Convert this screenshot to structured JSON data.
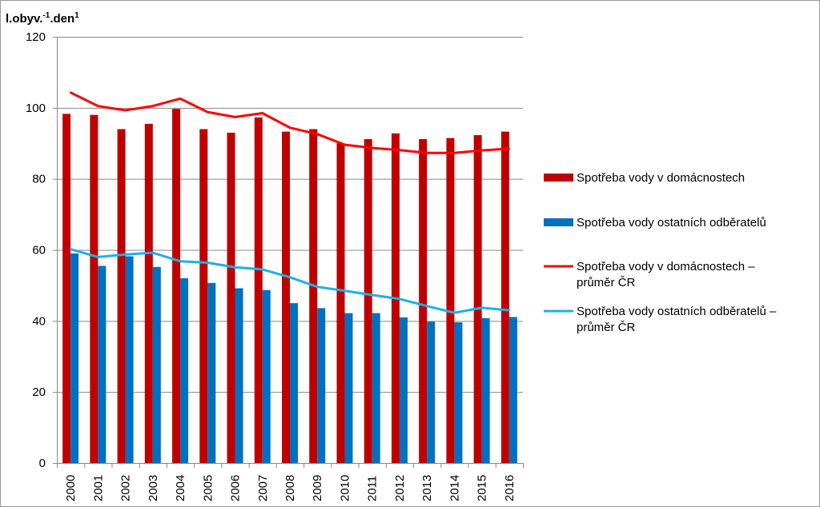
{
  "chart_data": {
    "type": "bar",
    "unit_label": "l.obyv.",
    "unit_sup1": "-1",
    "unit_mid": ".den",
    "unit_sup2": "1",
    "categories": [
      "2000",
      "2001",
      "2002",
      "2003",
      "2004",
      "2005",
      "2006",
      "2007",
      "2008",
      "2009",
      "2010",
      "2011",
      "2012",
      "2013",
      "2014",
      "2015",
      "2016"
    ],
    "ylim": [
      0,
      120
    ],
    "yticks": [
      0,
      20,
      40,
      60,
      80,
      100,
      120
    ],
    "grid": true,
    "legend_position": "right",
    "series": [
      {
        "name": "Spotřeba vody v domácnostech",
        "kind": "bar",
        "color": "#c00000",
        "values": [
          98.3,
          98.0,
          94.0,
          95.5,
          99.7,
          94.0,
          93.0,
          97.3,
          93.3,
          94.0,
          90.0,
          91.2,
          92.8,
          91.2,
          91.5,
          92.3,
          93.3
        ]
      },
      {
        "name": "Spotřeba vody ostatních odběratelů",
        "kind": "bar",
        "color": "#0070c0",
        "values": [
          59.0,
          55.5,
          58.2,
          55.2,
          52.0,
          50.7,
          49.2,
          48.7,
          45.0,
          43.6,
          42.2,
          42.2,
          41.0,
          39.8,
          39.6,
          40.8,
          41.1
        ]
      },
      {
        "name": "Spotřeba vody v domácnostech – průměr ČR",
        "legend_lines": [
          "Spotřeba vody v domácnostech –",
          "průměr ČR"
        ],
        "kind": "line",
        "color": "#ff0000",
        "values": [
          104.3,
          100.5,
          99.3,
          100.5,
          102.6,
          98.8,
          97.4,
          98.5,
          94.4,
          92.6,
          89.6,
          88.7,
          88.1,
          87.3,
          87.3,
          88.0,
          88.5
        ]
      },
      {
        "name": "Spotřeba vody ostatních odběratelů – průměr ČR",
        "legend_lines": [
          "Spotřeba vody ostatních odběratelů –",
          "průměr ČR"
        ],
        "kind": "line",
        "color": "#1eb0e6",
        "values": [
          60.2,
          58.0,
          58.7,
          59.2,
          56.8,
          56.4,
          55.1,
          54.5,
          52.3,
          49.6,
          48.5,
          47.3,
          46.2,
          44.2,
          42.3,
          43.7,
          43.0
        ]
      }
    ]
  }
}
